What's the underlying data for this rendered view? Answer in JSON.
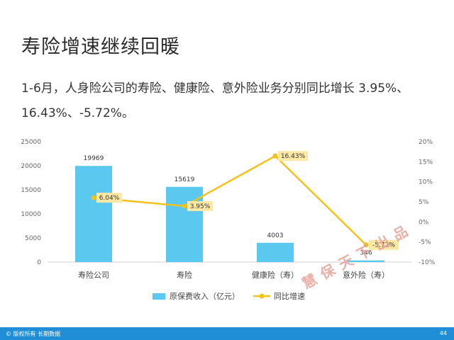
{
  "slide": {
    "title": "寿险增速继续回暖",
    "subtitle": "1-6月，人身险公司的寿险、健康险、意外险业务分别同比增长 3.95%、16.43%、-5.72%。"
  },
  "watermark": "慧保天下出品",
  "footer": {
    "copyright": "© 版权所有 长期数据",
    "page_number": "44"
  },
  "colors": {
    "bar": "#5bc8f0",
    "line": "#f3c21a",
    "label_bg": "#fbe8a4",
    "grid": "#dddddd",
    "footer": "#1f8ed6"
  },
  "chart_data": {
    "type": "bar",
    "categories": [
      "寿险公司",
      "寿险",
      "健康险（寿）",
      "意外险（寿）"
    ],
    "series": [
      {
        "name": "原保费收入（亿元）",
        "type": "bar",
        "axis": "left",
        "values": [
          19969,
          15619,
          4003,
          346
        ],
        "labels": [
          "19969",
          "15619",
          "4003",
          "346"
        ]
      },
      {
        "name": "同比增速",
        "type": "line",
        "axis": "right",
        "values": [
          6.04,
          3.95,
          16.43,
          -5.72
        ],
        "labels": [
          "6.04%",
          "3.95%",
          "16.43%",
          "-5.72%"
        ]
      }
    ],
    "y_left": {
      "min": 0,
      "max": 25000,
      "ticks": [
        "0",
        "5000",
        "10000",
        "15000",
        "20000",
        "25000"
      ],
      "tick_values": [
        0,
        5000,
        10000,
        15000,
        20000,
        25000
      ]
    },
    "y_right": {
      "min": -10,
      "max": 20,
      "ticks": [
        "-10%",
        "-5%",
        "0%",
        "5%",
        "10%",
        "15%",
        "20%"
      ],
      "tick_values": [
        -10,
        -5,
        0,
        5,
        10,
        15,
        20
      ]
    },
    "grid": false,
    "legend_position": "bottom"
  }
}
